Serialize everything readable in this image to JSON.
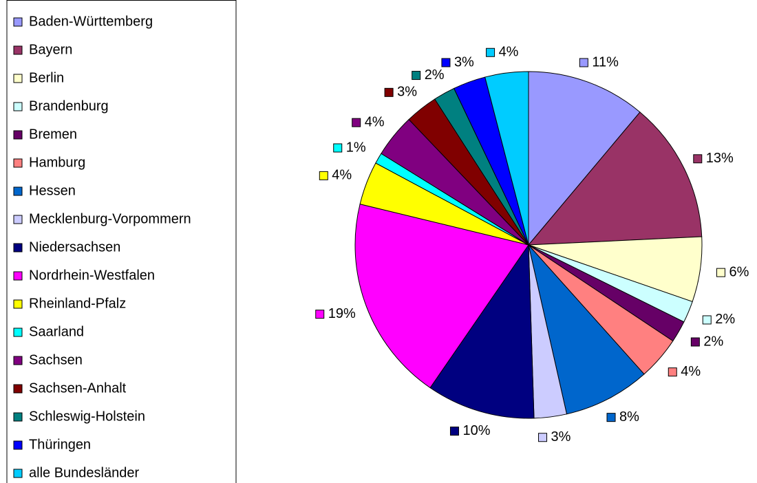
{
  "chart_data": {
    "type": "pie",
    "categories": [
      "Baden-Württemberg",
      "Bayern",
      "Berlin",
      "Brandenburg",
      "Bremen",
      "Hamburg",
      "Hessen",
      "Mecklenburg-Vorpommern",
      "Niedersachsen",
      "Nordrhein-Westfalen",
      "Rheinland-Pfalz",
      "Saarland",
      "Sachsen",
      "Sachsen-Anhalt",
      "Schleswig-Holstein",
      "Thüringen",
      "alle Bundesländer"
    ],
    "values": [
      11,
      13,
      6,
      2,
      2,
      4,
      8,
      3,
      10,
      19,
      4,
      1,
      4,
      3,
      2,
      3,
      4
    ],
    "value_labels": [
      "11%",
      "13%",
      "6%",
      "2%",
      "2%",
      "4%",
      "8%",
      "3%",
      "10%",
      "19%",
      "4%",
      "1%",
      "4%",
      "3%",
      "2%",
      "3%",
      "4%"
    ],
    "colors": [
      "#9999FF",
      "#993366",
      "#FFFFCC",
      "#CCFFFF",
      "#660066",
      "#FF8080",
      "#0066CC",
      "#CCCCFF",
      "#000080",
      "#FF00FF",
      "#FFFF00",
      "#00FFFF",
      "#800080",
      "#800000",
      "#008080",
      "#0000FF",
      "#00CCFF"
    ],
    "legend": "left"
  }
}
